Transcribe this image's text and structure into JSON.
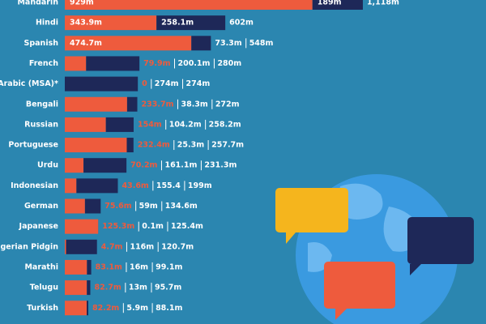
{
  "chart_data": {
    "type": "stacked-bar",
    "categories": [
      "Mandarin",
      "Hindi",
      "Spanish",
      "French",
      "Arabic (MSA)*",
      "Bengali",
      "Russian",
      "Portuguese",
      "Urdu",
      "Indonesian",
      "German",
      "Japanese",
      "Nigerian Pidgin",
      "Marathi",
      "Telugu",
      "Turkish"
    ],
    "series": [
      {
        "color": "#ee5b3d",
        "values": [
          929,
          343.9,
          474.7,
          79.9,
          0,
          233.7,
          154,
          232.4,
          70.2,
          43.6,
          75.6,
          125.3,
          4.7,
          83.1,
          82.7,
          82.2
        ],
        "value_labels": [
          "929m",
          "343.9m",
          "474.7m",
          "79.9m",
          "0",
          "233.7m",
          "154m",
          "232.4m",
          "70.2m",
          "43.6m",
          "75.6m",
          "125.3m",
          "4.7m",
          "83.1m",
          "82.7m",
          "82.2m"
        ]
      },
      {
        "color": "#1e2858",
        "values": [
          189,
          258.1,
          73.3,
          200.1,
          274,
          38.3,
          104.2,
          25.3,
          161.1,
          155.4,
          59,
          0.1,
          116,
          16,
          13,
          5.9
        ],
        "value_labels": [
          "189m",
          "258.1m",
          "73.3m",
          "200.1m",
          "274m",
          "38.3m",
          "104.2m",
          "25.3m",
          "161.1m",
          "155.4",
          "59m",
          "0.1m",
          "116m",
          "16m",
          "13m",
          "5.9m"
        ]
      }
    ],
    "totals": {
      "values": [
        1118,
        602,
        548,
        280,
        274,
        272,
        258.2,
        257.7,
        231.3,
        199,
        134.6,
        125.4,
        120.7,
        99.1,
        95.7,
        88.1
      ],
      "value_labels": [
        "1,118m",
        "602m",
        "548m",
        "280m",
        "274m",
        "272m",
        "258.2m",
        "257.7m",
        "231.3m",
        "199m",
        "134.6m",
        "125.4m",
        "120.7m",
        "99.1m",
        "95.7m",
        "88.1m"
      ]
    },
    "xlim": [
      0,
      1580
    ]
  }
}
